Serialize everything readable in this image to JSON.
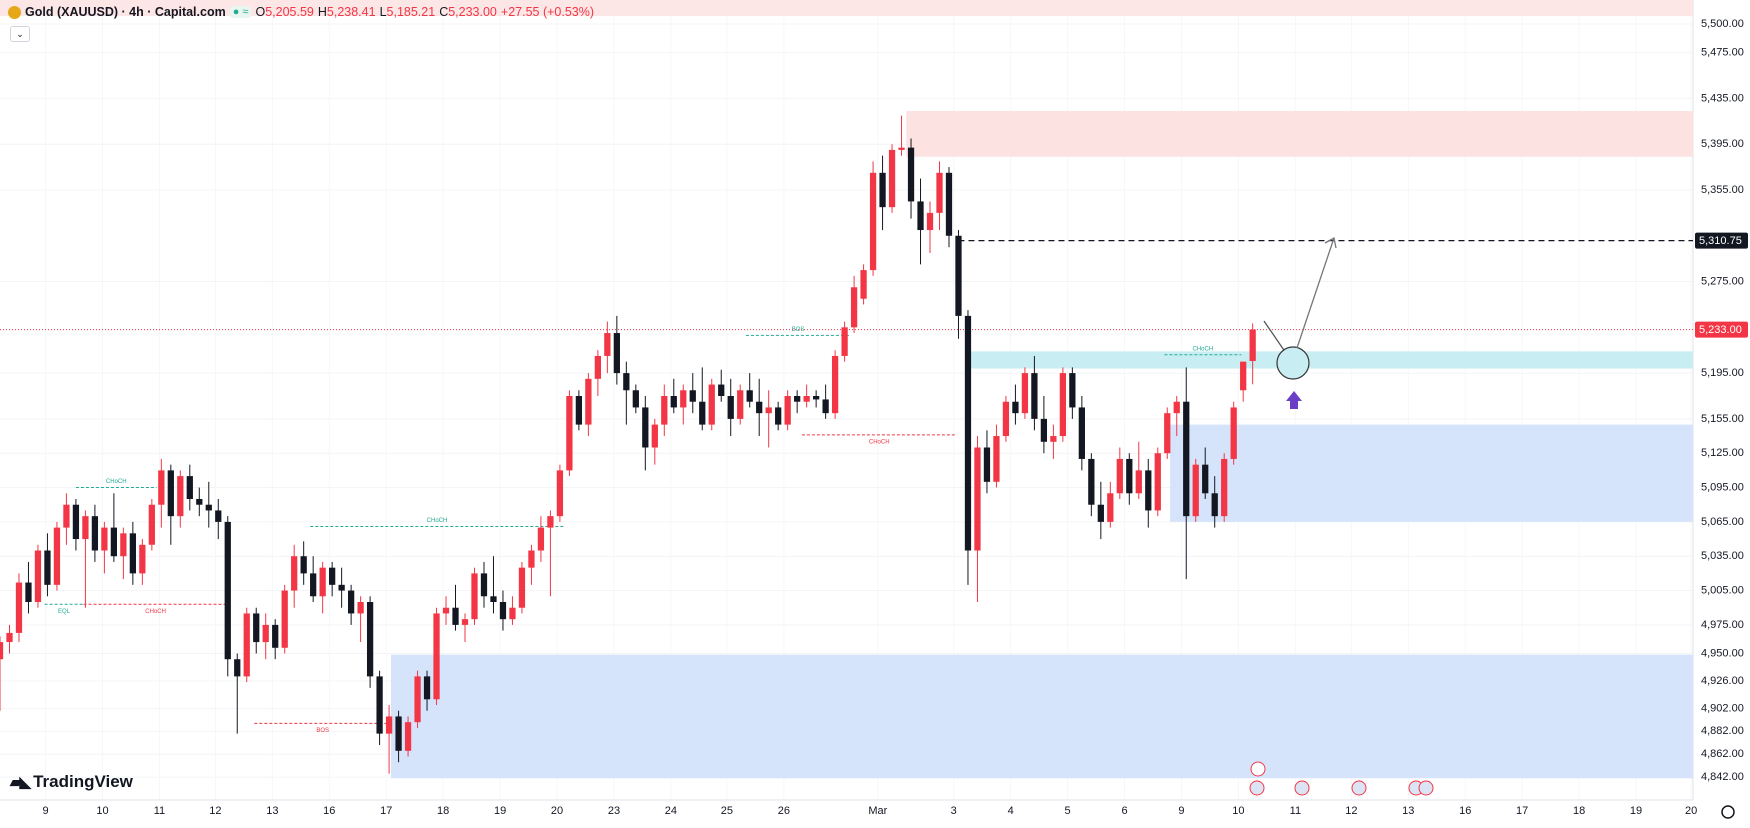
{
  "header": {
    "symbol": "Gold (XAUUSD) · 4h · Capital.com",
    "quote": [
      {
        "prefix": "O",
        "text": "5,205.59"
      },
      {
        "prefix": "H",
        "text": "5,238.41"
      },
      {
        "prefix": "L",
        "text": "5,185.21"
      },
      {
        "prefix": "C",
        "text": "5,233.00"
      }
    ],
    "change": "+27.55 (+0.53%)"
  },
  "brand": "TradingView",
  "chart_data": {
    "type": "candlestick",
    "up_color": "#f23645",
    "down_color": "#131722",
    "grid": true,
    "xlim": [
      0,
      178.4
    ],
    "ylim": [
      4822,
      5521
    ],
    "xticks": [
      {
        "value": 4.8,
        "label": "9"
      },
      {
        "value": 10.8,
        "label": "10"
      },
      {
        "value": 16.8,
        "label": "11"
      },
      {
        "value": 22.7,
        "label": "12"
      },
      {
        "value": 28.7,
        "label": "13"
      },
      {
        "value": 34.7,
        "label": "16"
      },
      {
        "value": 40.7,
        "label": "17"
      },
      {
        "value": 46.7,
        "label": "18"
      },
      {
        "value": 52.7,
        "label": "19"
      },
      {
        "value": 58.7,
        "label": "20"
      },
      {
        "value": 64.7,
        "label": "23"
      },
      {
        "value": 70.7,
        "label": "24"
      },
      {
        "value": 76.6,
        "label": "25"
      },
      {
        "value": 82.6,
        "label": "26"
      },
      {
        "value": 92.5,
        "label": "Mar"
      },
      {
        "value": 100.5,
        "label": "3"
      },
      {
        "value": 106.5,
        "label": "4"
      },
      {
        "value": 112.5,
        "label": "5"
      },
      {
        "value": 118.5,
        "label": "6"
      },
      {
        "value": 124.5,
        "label": "9"
      },
      {
        "value": 130.5,
        "label": "10"
      },
      {
        "value": 136.5,
        "label": "11"
      },
      {
        "value": 142.4,
        "label": "12"
      },
      {
        "value": 148.4,
        "label": "13"
      },
      {
        "value": 154.4,
        "label": "16"
      },
      {
        "value": 160.4,
        "label": "17"
      },
      {
        "value": 166.4,
        "label": "18"
      },
      {
        "value": 172.4,
        "label": "19"
      },
      {
        "value": 178.2,
        "label": "20"
      }
    ],
    "yticks": [
      {
        "value": 5500,
        "label": "5,500.00"
      },
      {
        "value": 5475,
        "label": "5,475.00"
      },
      {
        "value": 5435,
        "label": "5,435.00"
      },
      {
        "value": 5395,
        "label": "5,395.00"
      },
      {
        "value": 5355,
        "label": "5,355.00"
      },
      {
        "value": 5275,
        "label": "5,275.00"
      },
      {
        "value": 5195,
        "label": "5,195.00"
      },
      {
        "value": 5155,
        "label": "5,155.00"
      },
      {
        "value": 5125,
        "label": "5,125.00"
      },
      {
        "value": 5095,
        "label": "5,095.00"
      },
      {
        "value": 5065,
        "label": "5,065.00"
      },
      {
        "value": 5035,
        "label": "5,035.00"
      },
      {
        "value": 5005,
        "label": "5,005.00"
      },
      {
        "value": 4975,
        "label": "4,975.00"
      },
      {
        "value": 4950,
        "label": "4,950.00"
      },
      {
        "value": 4926,
        "label": "4,926.00"
      },
      {
        "value": 4902,
        "label": "4,902.00"
      },
      {
        "value": 4882,
        "label": "4,882.00"
      },
      {
        "value": 4862,
        "label": "4,862.00"
      },
      {
        "value": 4842,
        "label": "4,842.00"
      }
    ],
    "zones": [
      {
        "low": 5507,
        "high": 5521,
        "start": 0,
        "end": 178.4,
        "color": "#fde6e6"
      },
      {
        "low": 5384,
        "high": 5424,
        "start": 95.5,
        "end": 178.4,
        "color": "#fde2e2"
      },
      {
        "low": 5199,
        "high": 5214,
        "start": 101.9,
        "end": 178.4,
        "color": "#c8eef3"
      },
      {
        "low": 5065,
        "high": 5150,
        "start": 123.3,
        "end": 178.4,
        "color": "#d6e4fb"
      },
      {
        "low": 4841,
        "high": 4949,
        "start": 41.2,
        "end": 178.4,
        "color": "#d6e4fb"
      }
    ],
    "levels": [
      {
        "value": 5233,
        "label": "5,233.00",
        "start": 0,
        "color": "#f23645",
        "style": "dotted"
      },
      {
        "value": 5310.75,
        "label": "5,310.75",
        "start": 101,
        "color": "#131722",
        "style": "dashed"
      }
    ],
    "annotations": [
      {
        "text": "CHoCH",
        "price": 5095,
        "start": 8,
        "end": 16.5,
        "color": "#22ab94",
        "position": "above"
      },
      {
        "text": "EQL",
        "price": 4993,
        "start": 4.7,
        "end": 8.8,
        "color": "#22ab94",
        "position": "below"
      },
      {
        "text": "CHoCH",
        "price": 4993,
        "start": 8.8,
        "end": 24,
        "color": "#f23645",
        "position": "below"
      },
      {
        "text": "CHoCH",
        "price": 5061,
        "start": 32.7,
        "end": 59.4,
        "color": "#22ab94",
        "position": "above"
      },
      {
        "text": "BOS",
        "price": 4889,
        "start": 26.8,
        "end": 41.2,
        "color": "#f23645",
        "position": "below"
      },
      {
        "text": "BOS",
        "price": 5228,
        "start": 78.6,
        "end": 89.6,
        "color": "#22ab94",
        "position": "above"
      },
      {
        "text": "CHoCH",
        "price": 5141,
        "start": 84.5,
        "end": 100.8,
        "color": "#f23645",
        "position": "below"
      },
      {
        "text": "CHoCH",
        "price": 5211,
        "start": 122.7,
        "end": 130.8,
        "color": "#22ab94",
        "position": "above"
      }
    ],
    "candles": [
      [
        4945,
        4965,
        4900,
        4960
      ],
      [
        4960,
        4975,
        4950,
        4968
      ],
      [
        4968,
        5020,
        4960,
        5012
      ],
      [
        5012,
        5030,
        4985,
        4995
      ],
      [
        4995,
        5045,
        4990,
        5040
      ],
      [
        5040,
        5055,
        5000,
        5010
      ],
      [
        5010,
        5065,
        5005,
        5060
      ],
      [
        5060,
        5090,
        5045,
        5080
      ],
      [
        5080,
        5085,
        5040,
        5050
      ],
      [
        5050,
        5075,
        4990,
        5070
      ],
      [
        5070,
        5080,
        5030,
        5040
      ],
      [
        5040,
        5065,
        5020,
        5060
      ],
      [
        5060,
        5090,
        5030,
        5035
      ],
      [
        5035,
        5060,
        5015,
        5055
      ],
      [
        5055,
        5065,
        5010,
        5020
      ],
      [
        5020,
        5050,
        5010,
        5045
      ],
      [
        5045,
        5085,
        5040,
        5080
      ],
      [
        5080,
        5120,
        5060,
        5110
      ],
      [
        5110,
        5115,
        5045,
        5070
      ],
      [
        5070,
        5110,
        5060,
        5105
      ],
      [
        5105,
        5115,
        5075,
        5085
      ],
      [
        5085,
        5095,
        5070,
        5080
      ],
      [
        5080,
        5100,
        5060,
        5075
      ],
      [
        5075,
        5085,
        5050,
        5065
      ],
      [
        5065,
        5070,
        4930,
        4945
      ],
      [
        4945,
        4950,
        4880,
        4930
      ],
      [
        4930,
        4990,
        4925,
        4985
      ],
      [
        4985,
        4990,
        4950,
        4960
      ],
      [
        4960,
        4985,
        4945,
        4975
      ],
      [
        4975,
        4980,
        4945,
        4955
      ],
      [
        4955,
        5010,
        4950,
        5005
      ],
      [
        5005,
        5045,
        4990,
        5035
      ],
      [
        5035,
        5048,
        5010,
        5020
      ],
      [
        5020,
        5035,
        4995,
        5000
      ],
      [
        5000,
        5030,
        4985,
        5025
      ],
      [
        5025,
        5030,
        5000,
        5010
      ],
      [
        5010,
        5025,
        4990,
        5005
      ],
      [
        5005,
        5010,
        4975,
        4985
      ],
      [
        4985,
        5000,
        4960,
        4995
      ],
      [
        4995,
        5000,
        4920,
        4930
      ],
      [
        4930,
        4935,
        4870,
        4880
      ],
      [
        4880,
        4905,
        4845,
        4895
      ],
      [
        4895,
        4900,
        4855,
        4865
      ],
      [
        4865,
        4895,
        4860,
        4890
      ],
      [
        4890,
        4935,
        4885,
        4930
      ],
      [
        4930,
        4935,
        4900,
        4910
      ],
      [
        4910,
        4990,
        4905,
        4985
      ],
      [
        4985,
        5000,
        4975,
        4990
      ],
      [
        4990,
        5010,
        4970,
        4975
      ],
      [
        4975,
        4985,
        4960,
        4980
      ],
      [
        4980,
        5025,
        4975,
        5020
      ],
      [
        5020,
        5030,
        4990,
        5000
      ],
      [
        5000,
        5035,
        4985,
        4995
      ],
      [
        4995,
        5005,
        4970,
        4980
      ],
      [
        4980,
        5000,
        4975,
        4990
      ],
      [
        4990,
        5030,
        4985,
        5025
      ],
      [
        5025,
        5045,
        5010,
        5040
      ],
      [
        5040,
        5070,
        5030,
        5060
      ],
      [
        5060,
        5075,
        5000,
        5070
      ],
      [
        5070,
        5115,
        5065,
        5110
      ],
      [
        5110,
        5180,
        5105,
        5175
      ],
      [
        5175,
        5180,
        5145,
        5150
      ],
      [
        5150,
        5195,
        5140,
        5190
      ],
      [
        5190,
        5215,
        5175,
        5210
      ],
      [
        5210,
        5240,
        5195,
        5230
      ],
      [
        5230,
        5245,
        5185,
        5195
      ],
      [
        5195,
        5205,
        5150,
        5180
      ],
      [
        5180,
        5185,
        5160,
        5165
      ],
      [
        5165,
        5175,
        5110,
        5130
      ],
      [
        5130,
        5155,
        5115,
        5150
      ],
      [
        5150,
        5185,
        5140,
        5175
      ],
      [
        5175,
        5190,
        5160,
        5165
      ],
      [
        5165,
        5185,
        5150,
        5180
      ],
      [
        5180,
        5195,
        5160,
        5170
      ],
      [
        5170,
        5200,
        5145,
        5150
      ],
      [
        5150,
        5190,
        5145,
        5185
      ],
      [
        5185,
        5198,
        5170,
        5175
      ],
      [
        5175,
        5190,
        5140,
        5155
      ],
      [
        5155,
        5185,
        5150,
        5180
      ],
      [
        5180,
        5195,
        5165,
        5170
      ],
      [
        5170,
        5190,
        5140,
        5160
      ],
      [
        5160,
        5180,
        5130,
        5165
      ],
      [
        5165,
        5170,
        5145,
        5150
      ],
      [
        5150,
        5180,
        5145,
        5175
      ],
      [
        5175,
        5180,
        5160,
        5170
      ],
      [
        5170,
        5185,
        5165,
        5175
      ],
      [
        5175,
        5180,
        5165,
        5172
      ],
      [
        5172,
        5185,
        5155,
        5160
      ],
      [
        5160,
        5215,
        5155,
        5210
      ],
      [
        5210,
        5240,
        5205,
        5235
      ],
      [
        5235,
        5280,
        5230,
        5270
      ],
      [
        5260,
        5290,
        5255,
        5285
      ],
      [
        5285,
        5380,
        5280,
        5370
      ],
      [
        5370,
        5385,
        5320,
        5340
      ],
      [
        5340,
        5395,
        5335,
        5390
      ],
      [
        5390,
        5420,
        5385,
        5392
      ],
      [
        5392,
        5400,
        5330,
        5345
      ],
      [
        5345,
        5365,
        5290,
        5320
      ],
      [
        5320,
        5345,
        5300,
        5335
      ],
      [
        5335,
        5380,
        5320,
        5370
      ],
      [
        5370,
        5375,
        5305,
        5315
      ],
      [
        5315,
        5320,
        5225,
        5245
      ],
      [
        5245,
        5250,
        5010,
        5040
      ],
      [
        5040,
        5140,
        4995,
        5130
      ],
      [
        5130,
        5145,
        5090,
        5100
      ],
      [
        5100,
        5150,
        5095,
        5140
      ],
      [
        5140,
        5175,
        5135,
        5170
      ],
      [
        5170,
        5185,
        5150,
        5160
      ],
      [
        5160,
        5200,
        5155,
        5195
      ],
      [
        5195,
        5210,
        5145,
        5155
      ],
      [
        5155,
        5175,
        5125,
        5135
      ],
      [
        5135,
        5150,
        5120,
        5140
      ],
      [
        5140,
        5200,
        5135,
        5195
      ],
      [
        5195,
        5200,
        5155,
        5165
      ],
      [
        5165,
        5175,
        5110,
        5120
      ],
      [
        5120,
        5125,
        5070,
        5080
      ],
      [
        5080,
        5100,
        5050,
        5065
      ],
      [
        5065,
        5100,
        5060,
        5090
      ],
      [
        5090,
        5130,
        5085,
        5120
      ],
      [
        5120,
        5125,
        5080,
        5090
      ],
      [
        5090,
        5135,
        5085,
        5110
      ],
      [
        5110,
        5120,
        5060,
        5075
      ],
      [
        5075,
        5130,
        5070,
        5125
      ],
      [
        5125,
        5165,
        5120,
        5160
      ],
      [
        5160,
        5175,
        5140,
        5170
      ],
      [
        5170,
        5200,
        5015,
        5070
      ],
      [
        5070,
        5120,
        5065,
        5115
      ],
      [
        5115,
        5130,
        5085,
        5090
      ],
      [
        5090,
        5105,
        5060,
        5070
      ],
      [
        5070,
        5125,
        5065,
        5120
      ],
      [
        5120,
        5170,
        5115,
        5165
      ],
      [
        5180,
        5205,
        5170,
        5205
      ],
      [
        5205.59,
        5238.41,
        5185.21,
        5233.0
      ]
    ]
  }
}
